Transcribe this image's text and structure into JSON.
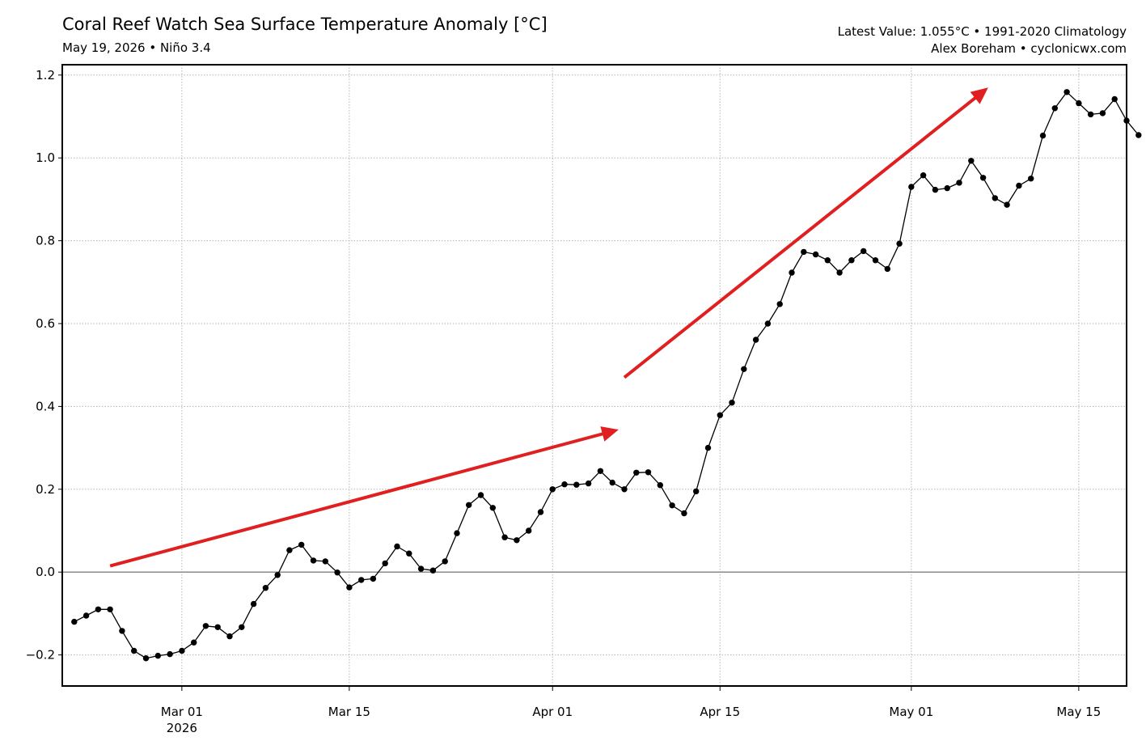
{
  "header": {
    "title": "Coral Reef Watch Sea Surface Temperature Anomaly [°C]",
    "subtitle": "May 19, 2026 • Niño 3.4",
    "info_line1": "Latest Value: 1.055°C • 1991-2020 Climatology",
    "info_line2": "Alex Boreham • cyclonicwx.com"
  },
  "chart_data": {
    "type": "line",
    "title": "Coral Reef Watch Sea Surface Temperature Anomaly [°C]",
    "xlabel": "",
    "ylabel": "",
    "x_range": [
      "2026-02-19",
      "2026-05-19"
    ],
    "ylim": [
      -0.275,
      1.225
    ],
    "yticks": [
      -0.2,
      0.0,
      0.2,
      0.4,
      0.6,
      0.8,
      1.0,
      1.2
    ],
    "ytick_labels": [
      "−0.2",
      "0.0",
      "0.2",
      "0.4",
      "0.6",
      "0.8",
      "1.0",
      "1.2"
    ],
    "xticks": [
      {
        "date": "2026-03-01",
        "label": "Mar 01",
        "sublabel": "2026"
      },
      {
        "date": "2026-03-15",
        "label": "Mar 15",
        "sublabel": ""
      },
      {
        "date": "2026-04-01",
        "label": "Apr 01",
        "sublabel": ""
      },
      {
        "date": "2026-04-15",
        "label": "Apr 15",
        "sublabel": ""
      },
      {
        "date": "2026-05-01",
        "label": "May 01",
        "sublabel": ""
      },
      {
        "date": "2026-05-15",
        "label": "May 15",
        "sublabel": ""
      }
    ],
    "grid": true,
    "zero_line": true,
    "series": [
      {
        "color": "#000000",
        "x_start": "2026-02-20",
        "x_step_days": 1,
        "values": [
          -0.12,
          -0.105,
          -0.09,
          -0.09,
          -0.142,
          -0.19,
          -0.208,
          -0.202,
          -0.198,
          -0.19,
          -0.17,
          -0.13,
          -0.133,
          -0.155,
          -0.133,
          -0.077,
          -0.038,
          -0.007,
          0.053,
          0.066,
          0.028,
          0.026,
          -0.001,
          -0.037,
          -0.019,
          -0.016,
          0.021,
          0.062,
          0.045,
          0.008,
          0.004,
          0.026,
          0.094,
          0.162,
          0.186,
          0.155,
          0.084,
          0.077,
          0.1,
          0.145,
          0.2,
          0.212,
          0.211,
          0.214,
          0.244,
          0.216,
          0.2,
          0.24,
          0.241,
          0.21,
          0.161,
          0.142,
          0.195,
          0.3,
          0.379,
          0.409,
          0.49,
          0.561,
          0.6,
          0.647,
          0.723,
          0.773,
          0.767,
          0.753,
          0.723,
          0.753,
          0.775,
          0.753,
          0.732,
          0.793,
          0.93,
          0.958,
          0.923,
          0.927,
          0.94,
          0.993,
          0.952,
          0.903,
          0.887,
          0.933,
          0.95,
          1.054,
          1.12,
          1.159,
          1.132,
          1.105,
          1.108,
          1.142,
          1.09,
          1.055
        ]
      }
    ],
    "annotations": [
      {
        "type": "arrow",
        "color": "#e02020",
        "from": {
          "x": "2026-02-23",
          "y": 0.015
        },
        "to": {
          "x": "2026-04-06",
          "y": 0.34
        }
      },
      {
        "type": "arrow",
        "color": "#e02020",
        "from": {
          "x": "2026-04-07",
          "y": 0.47
        },
        "to": {
          "x": "2026-05-07",
          "y": 1.16
        }
      }
    ]
  }
}
